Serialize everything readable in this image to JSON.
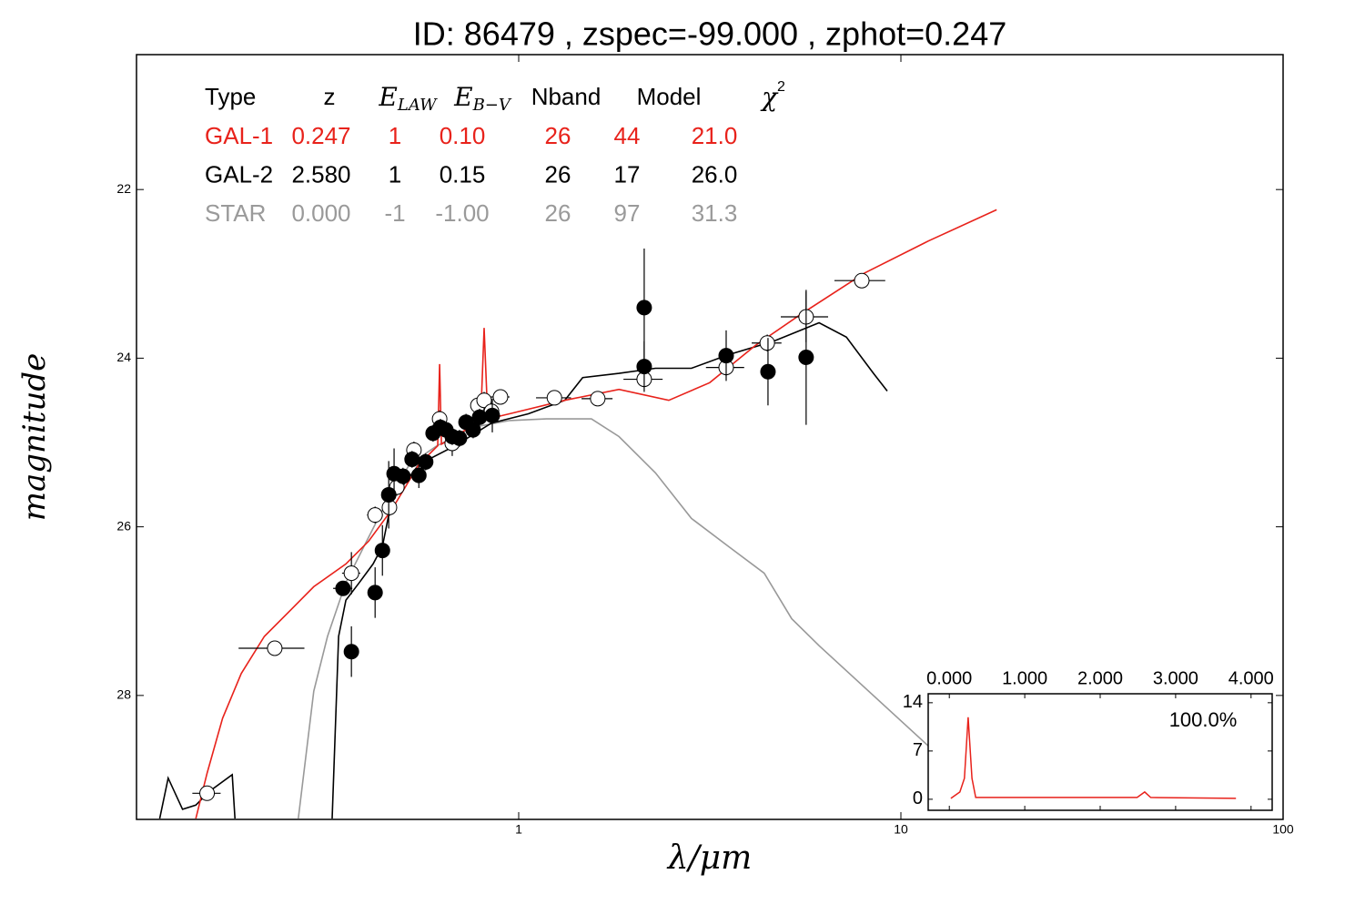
{
  "chart_data": [
    {
      "type": "scatter",
      "title": "ID:  86479 , zspec=-99.000 , zphot=0.247",
      "xlabel": "λ/μm",
      "ylabel": "magnitude",
      "xscale": "log",
      "xlim": [
        0.1,
        100
      ],
      "ylim": [
        29.47,
        20.4
      ],
      "xticks": [
        1,
        10,
        100
      ],
      "yticks": [
        22,
        24,
        26,
        28
      ],
      "table": {
        "header": [
          {
            "text": "Type"
          },
          {
            "text": "z"
          },
          {
            "text": "E",
            "sub": "LAW",
            "italic": true
          },
          {
            "text": "E",
            "sub": "B−V",
            "italic": true
          },
          {
            "text": "Nband"
          },
          {
            "text": "Model"
          },
          {
            "text": "χ",
            "sup": "2",
            "italic": true
          }
        ],
        "rows": [
          {
            "color": "#e8221b",
            "cells": [
              "GAL-1",
              "0.247",
              "1",
              "0.10",
              "26",
              "44",
              "21.0"
            ]
          },
          {
            "color": "#000000",
            "cells": [
              "GAL-2",
              "2.580",
              "1",
              "0.15",
              "26",
              "17",
              "26.0"
            ]
          },
          {
            "color": "#9a9a9a",
            "cells": [
              "STAR",
              "0.000",
              "-1",
              "-1.00",
              "26",
              "97",
              "31.3"
            ]
          }
        ]
      },
      "lines": [
        {
          "color": "#999999",
          "x": [
            0.265,
            0.291,
            0.316,
            0.353,
            0.394,
            0.44,
            0.518,
            0.611,
            0.76,
            0.946,
            1.18,
            1.55,
            1.83,
            2.28,
            2.83,
            3.53,
            4.39,
            5.18,
            6.11,
            11.8
          ],
          "values": [
            29.46,
            27.95,
            27.3,
            26.66,
            26.23,
            25.8,
            25.26,
            25.04,
            24.82,
            24.74,
            24.72,
            24.72,
            24.93,
            25.36,
            25.9,
            26.23,
            26.55,
            27.09,
            27.41,
            28.6
          ]
        },
        {
          "color": "#000000",
          "x": [
            0.115,
            0.121,
            0.132,
            0.143,
            0.155,
            0.178,
            0.181,
            null,
            0.325,
            0.338,
            0.353,
            0.383,
            0.416,
            0.44,
            0.465,
            0.548,
            0.681,
            0.849,
            1.06,
            1.32,
            1.47,
            1.83,
            2.28,
            2.83,
            3.53,
            4.64,
            6.11,
            7.2,
            8.48,
            9.21
          ],
          "values": [
            29.46,
            28.98,
            29.35,
            29.3,
            29.14,
            28.94,
            29.46,
            null,
            29.46,
            27.3,
            26.87,
            26.66,
            26.44,
            26.23,
            25.69,
            25.26,
            25.04,
            24.77,
            24.66,
            24.5,
            24.23,
            24.18,
            24.12,
            24.12,
            23.96,
            23.8,
            23.58,
            23.75,
            24.18,
            24.39
          ]
        },
        {
          "color": "#e8221b",
          "x": [
            0.143,
            0.153,
            0.168,
            0.188,
            0.216,
            0.254,
            0.291,
            0.353,
            0.405,
            0.465,
            0.548,
            0.614,
            0.621,
            0.628,
            0.681,
            0.795,
            0.812,
            0.83,
            0.946,
            1.32,
            1.83,
            2.47,
            3.16,
            4.16,
            5.47,
            8.03,
            11.8,
            17.8
          ],
          "values": [
            29.46,
            28.92,
            28.27,
            27.74,
            27.3,
            26.98,
            26.71,
            26.44,
            26.17,
            25.8,
            25.26,
            25.04,
            24.07,
            25.02,
            24.93,
            24.74,
            23.64,
            24.72,
            24.66,
            24.5,
            24.37,
            24.5,
            24.29,
            23.85,
            23.48,
            22.99,
            22.61,
            22.24
          ]
        }
      ],
      "series": [
        {
          "marker": "open",
          "color": "#000000",
          "x": [
            0.153,
            0.23,
            0.365,
            0.421,
            0.459,
            0.48,
            0.532,
            0.621,
            0.67,
            0.782,
            0.812,
            0.849,
            0.896,
            1.24,
            1.61,
            2.13,
            3.49,
            4.47,
            5.65,
            7.9
          ],
          "values": [
            29.16,
            27.44,
            26.55,
            25.86,
            25.77,
            25.53,
            25.09,
            24.72,
            25.01,
            24.56,
            24.5,
            24.63,
            24.46,
            24.47,
            24.48,
            24.25,
            24.11,
            23.82,
            23.51,
            23.08
          ],
          "xerr": [
            0.013,
            0.045,
            0.02,
            0.02,
            0.02,
            0.02,
            0.02,
            0.02,
            0.03,
            0.03,
            0.03,
            0.03,
            0.05,
            0.13,
            0.15,
            0.25,
            0.4,
            0.4,
            0.8,
            1.2
          ],
          "yerr": [
            0.05,
            0.05,
            0.25,
            0.1,
            0.1,
            0.1,
            0.1,
            0.1,
            0.15,
            0.1,
            0.1,
            0.1,
            0.05,
            0.05,
            0.05,
            0.1,
            0.1,
            0.1,
            0.3,
            0.05
          ]
        },
        {
          "marker": "filled",
          "color": "#000000",
          "x": [
            0.347,
            0.365,
            0.421,
            0.44,
            0.457,
            0.472,
            0.498,
            0.526,
            0.548,
            0.571,
            0.597,
            0.624,
            0.645,
            0.67,
            0.7,
            0.728,
            0.76,
            0.79,
            0.853,
            2.13,
            2.13,
            3.49,
            4.49,
            5.65
          ],
          "values": [
            26.73,
            27.48,
            26.78,
            26.28,
            25.62,
            25.37,
            25.4,
            25.2,
            25.39,
            25.23,
            24.89,
            24.82,
            24.85,
            24.93,
            24.95,
            24.76,
            24.85,
            24.7,
            24.68,
            23.4,
            24.1,
            23.97,
            24.16,
            23.99
          ],
          "xerr": [
            0.02,
            0.01,
            0.01,
            0.01,
            0.01,
            0.01,
            0.01,
            0.01,
            0.01,
            0.01,
            0.01,
            0.01,
            0.01,
            0.01,
            0.02,
            0.02,
            0.02,
            0.02,
            0.02,
            0.02,
            0.02,
            0.05,
            0.05,
            0.05
          ],
          "yerr": [
            0.05,
            0.3,
            0.3,
            0.3,
            0.4,
            0.3,
            0.1,
            0.1,
            0.15,
            0.1,
            0.1,
            0.1,
            0.1,
            0.1,
            0.1,
            0.1,
            0.1,
            0.1,
            0.2,
            0.7,
            0.3,
            0.3,
            0.4,
            0.8
          ]
        }
      ]
    },
    {
      "type": "line",
      "xaxis_position": "top",
      "annotation": "100.0%",
      "xlim": [
        -0.28,
        4.28
      ],
      "ylim": [
        -1.6,
        15.3
      ],
      "xticks": [
        {
          "value": 0,
          "label": "0.000"
        },
        {
          "value": 1,
          "label": "1.000"
        },
        {
          "value": 2,
          "label": "2.000"
        },
        {
          "value": 3,
          "label": "3.000"
        },
        {
          "value": 4,
          "label": "4.000"
        }
      ],
      "yticks": [
        0,
        7,
        14
      ],
      "series": [
        {
          "color": "#e8221b",
          "x": [
            0.02,
            0.14,
            0.2,
            0.25,
            0.3,
            0.35,
            2.49,
            2.59,
            2.67,
            3.8
          ],
          "values": [
            0.13,
            1.06,
            3.04,
            11.9,
            3.04,
            0.26,
            0.26,
            1.06,
            0.26,
            0.13
          ]
        }
      ]
    }
  ]
}
